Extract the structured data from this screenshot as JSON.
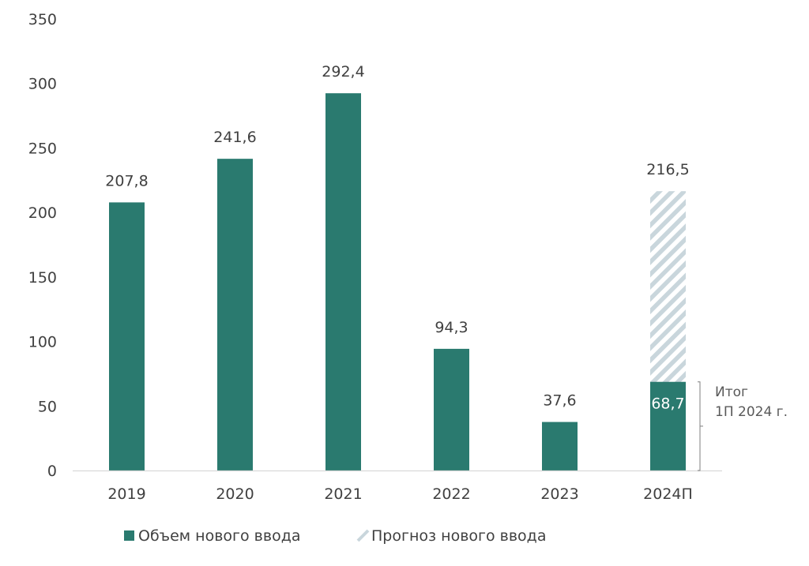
{
  "chart_data": {
    "type": "bar",
    "categories": [
      "2019",
      "2020",
      "2021",
      "2022",
      "2023",
      "2024П"
    ],
    "series": [
      {
        "name": "Объем нового ввода",
        "values": [
          207.8,
          241.6,
          292.4,
          94.3,
          37.6,
          68.7
        ],
        "labels": [
          "207,8",
          "241,6",
          "292,4",
          "94,3",
          "37,6",
          "68,7"
        ],
        "color": "#2a7a6f"
      },
      {
        "name": "Прогноз нового ввода",
        "values": [
          null,
          null,
          null,
          null,
          null,
          216.5
        ],
        "labels": [
          "",
          "",
          "",
          "",
          "",
          "216,5"
        ],
        "color": "#c9d6dc",
        "pattern": "diagonal-hatch"
      }
    ],
    "y_ticks": [
      "0",
      "50",
      "100",
      "150",
      "200",
      "250",
      "300",
      "350"
    ],
    "ylim": [
      0,
      350
    ],
    "grid": false,
    "legend_position": "bottom",
    "annotation": {
      "lines": [
        "Итог",
        "1П 2024 г."
      ],
      "category": "2024П",
      "range": [
        0,
        68.7
      ]
    }
  }
}
